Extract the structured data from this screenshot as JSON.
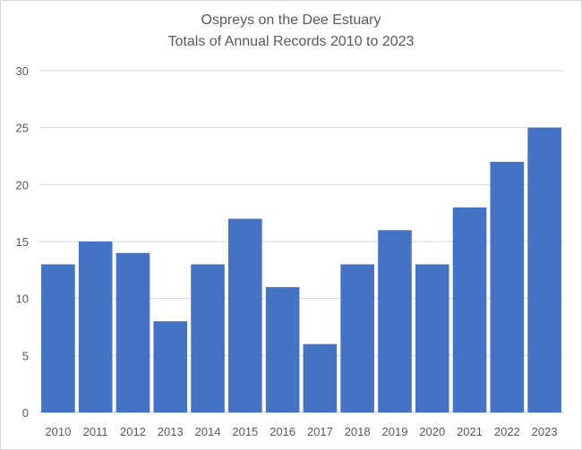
{
  "chart_data": {
    "type": "bar",
    "title": "Ospreys on the Dee Estuary",
    "subtitle": "Totals of Annual Records 2010 to 2023",
    "xlabel": "",
    "ylabel": "",
    "categories": [
      "2010",
      "2011",
      "2012",
      "2013",
      "2014",
      "2015",
      "2016",
      "2017",
      "2018",
      "2019",
      "2020",
      "2021",
      "2022",
      "2023"
    ],
    "values": [
      13,
      15,
      14,
      8,
      13,
      17,
      11,
      6,
      13,
      16,
      13,
      18,
      22,
      25
    ],
    "ylim": [
      0,
      30
    ],
    "yticks": [
      "0",
      "5",
      "10",
      "15",
      "20",
      "25",
      "30"
    ],
    "grid": true,
    "legend": "none",
    "bar_color": "#4472C4"
  }
}
